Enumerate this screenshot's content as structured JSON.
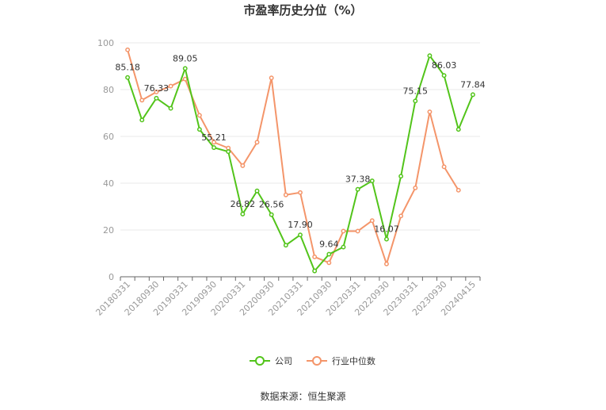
{
  "chart_data": {
    "type": "line",
    "title": "市盈率历史分位（%）",
    "source": "数据来源：恒生聚源",
    "x_tick_labels": [
      "20180331",
      "20180930",
      "20190331",
      "20190930",
      "20200331",
      "20200930",
      "20210331",
      "20210930",
      "20220331",
      "20220930",
      "20230331",
      "20230930",
      "20240415"
    ],
    "x_tick_positions": [
      0,
      2,
      4,
      6,
      8,
      10,
      12,
      14,
      16,
      18,
      20,
      22,
      24
    ],
    "ylim": [
      0,
      100
    ],
    "yticks": [
      0,
      20,
      40,
      60,
      80,
      100
    ],
    "grid": true,
    "legend_position": "bottom",
    "series": [
      {
        "name": "公司",
        "color": "#52c41a",
        "values": [
          85.18,
          67,
          76.33,
          72,
          89.05,
          63,
          55.21,
          53.5,
          26.82,
          36.7,
          26.56,
          13.5,
          17.9,
          2.5,
          9.64,
          12.7,
          37.38,
          41,
          16.07,
          43,
          75.15,
          94.5,
          86.03,
          63,
          77.84
        ],
        "labels": {
          "0": "85.18",
          "2": "76.33",
          "4": "89.05",
          "6": "55.21",
          "8": "26.82",
          "10": "26.56",
          "12": "17.90",
          "14": "9.64",
          "16": "37.38",
          "18": "16.07",
          "20": "75.15",
          "22": "86.03",
          "24": "77.84"
        }
      },
      {
        "name": "行业中位数",
        "color": "#f4956a",
        "values": [
          97,
          75.5,
          79,
          81.5,
          84.5,
          69,
          57.5,
          55,
          47.5,
          57.5,
          85,
          35,
          36,
          8.5,
          6,
          19.5,
          19.5,
          24,
          5.5,
          26,
          38,
          70.5,
          47,
          37,
          null
        ]
      }
    ]
  }
}
